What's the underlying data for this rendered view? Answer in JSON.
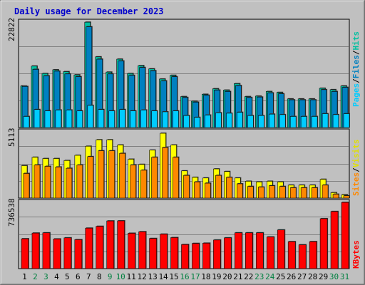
{
  "title": "Daily usage for December 2023",
  "colors": {
    "background": "#c0c0c0",
    "title": "#0000cc",
    "hits": "#00c0a0",
    "files": "#0080c0",
    "pages": "#00ccff",
    "visits": "#ffff00",
    "sites": "#ff8800",
    "kbytes": "#ff0000",
    "grid": "#808080",
    "weekday_label": "#000000",
    "weekend_label": "#008040"
  },
  "legend": {
    "top": [
      {
        "text": "Pages",
        "color": "#00ccff"
      },
      {
        "text": "/",
        "color": "#000000"
      },
      {
        "text": "Files",
        "color": "#0080c0"
      },
      {
        "text": "/",
        "color": "#000000"
      },
      {
        "text": "Hits",
        "color": "#00c0a0"
      }
    ],
    "middle": [
      {
        "text": "Sites",
        "color": "#ff8800"
      },
      {
        "text": "/",
        "color": "#000000"
      },
      {
        "text": "Visits",
        "color": "#ffff00"
      }
    ],
    "bottom": [
      {
        "text": "KBytes",
        "color": "#ff0000"
      }
    ]
  },
  "chart_data": [
    {
      "type": "bar",
      "panel": "hits-files-pages",
      "ymax_label": "22822",
      "ylim": [
        0,
        22822
      ],
      "grid": true,
      "categories": [
        "1",
        "2",
        "3",
        "4",
        "5",
        "6",
        "7",
        "8",
        "9",
        "10",
        "11",
        "12",
        "13",
        "14",
        "15",
        "16",
        "17",
        "18",
        "19",
        "20",
        "21",
        "22",
        "23",
        "24",
        "25",
        "26",
        "27",
        "28",
        "29",
        "30",
        "31"
      ],
      "weekend_days": [
        "2",
        "3",
        "9",
        "10",
        "16",
        "17",
        "23",
        "24",
        "30",
        "31"
      ],
      "series": [
        {
          "name": "Hits",
          "values": [
            9000,
            13300,
            11700,
            12500,
            12100,
            11400,
            22800,
            15300,
            12000,
            14800,
            11700,
            13400,
            12700,
            10500,
            11300,
            6700,
            5700,
            7200,
            8400,
            8100,
            9500,
            6700,
            6800,
            7800,
            7600,
            6200,
            6200,
            6200,
            8500,
            8200,
            9000
          ]
        },
        {
          "name": "Files",
          "values": [
            8900,
            12600,
            11200,
            12200,
            11600,
            11000,
            21800,
            14800,
            11600,
            14400,
            11300,
            13000,
            12300,
            10100,
            11000,
            6500,
            5500,
            7000,
            8100,
            7800,
            9100,
            6500,
            6600,
            7500,
            7300,
            6000,
            6000,
            6000,
            8200,
            7800,
            8700
          ]
        },
        {
          "name": "Pages",
          "values": [
            2400,
            3900,
            3600,
            3800,
            3800,
            3600,
            4800,
            3900,
            3600,
            3900,
            3600,
            3800,
            3600,
            3400,
            3600,
            2600,
            2200,
            2700,
            3200,
            3100,
            3300,
            2600,
            2600,
            2900,
            2800,
            2400,
            2400,
            2400,
            3000,
            2800,
            3000
          ]
        }
      ]
    },
    {
      "type": "bar",
      "panel": "visits-sites",
      "ymax_label": "5113",
      "ylim": [
        0,
        5113
      ],
      "grid": true,
      "categories": [
        "1",
        "2",
        "3",
        "4",
        "5",
        "6",
        "7",
        "8",
        "9",
        "10",
        "11",
        "12",
        "13",
        "14",
        "15",
        "16",
        "17",
        "18",
        "19",
        "20",
        "21",
        "22",
        "23",
        "24",
        "25",
        "26",
        "27",
        "28",
        "29",
        "30",
        "31"
      ],
      "series": [
        {
          "name": "Visits",
          "values": [
            2500,
            3150,
            3050,
            3050,
            2900,
            3300,
            4000,
            4500,
            4500,
            4100,
            3000,
            2600,
            3700,
            5000,
            4100,
            2100,
            1600,
            1550,
            2250,
            2050,
            1550,
            1300,
            1250,
            1300,
            1250,
            1000,
            1000,
            1000,
            1450,
            420,
            260
          ]
        },
        {
          "name": "Sites",
          "values": [
            1900,
            2550,
            2450,
            2400,
            2300,
            2550,
            3200,
            3650,
            3650,
            3450,
            2550,
            2150,
            3150,
            3900,
            3150,
            1750,
            1250,
            1150,
            1750,
            1600,
            1100,
            900,
            850,
            950,
            900,
            800,
            800,
            800,
            1000,
            300,
            180
          ]
        }
      ]
    },
    {
      "type": "bar",
      "panel": "kbytes",
      "ymax_label": "736538",
      "ylim": [
        0,
        736538
      ],
      "grid": true,
      "categories": [
        "1",
        "2",
        "3",
        "4",
        "5",
        "6",
        "7",
        "8",
        "9",
        "10",
        "11",
        "12",
        "13",
        "14",
        "15",
        "16",
        "17",
        "18",
        "19",
        "20",
        "21",
        "22",
        "23",
        "24",
        "25",
        "26",
        "27",
        "28",
        "29",
        "30",
        "31"
      ],
      "series": [
        {
          "name": "KBytes",
          "values": [
            332000,
            395000,
            398000,
            330000,
            342000,
            322000,
            450000,
            470000,
            530000,
            531000,
            393000,
            410000,
            335000,
            383000,
            345000,
            268000,
            280000,
            283000,
            318000,
            342000,
            398000,
            398000,
            398000,
            352000,
            430000,
            300000,
            265000,
            300000,
            555000,
            635000,
            736538
          ]
        }
      ]
    }
  ]
}
